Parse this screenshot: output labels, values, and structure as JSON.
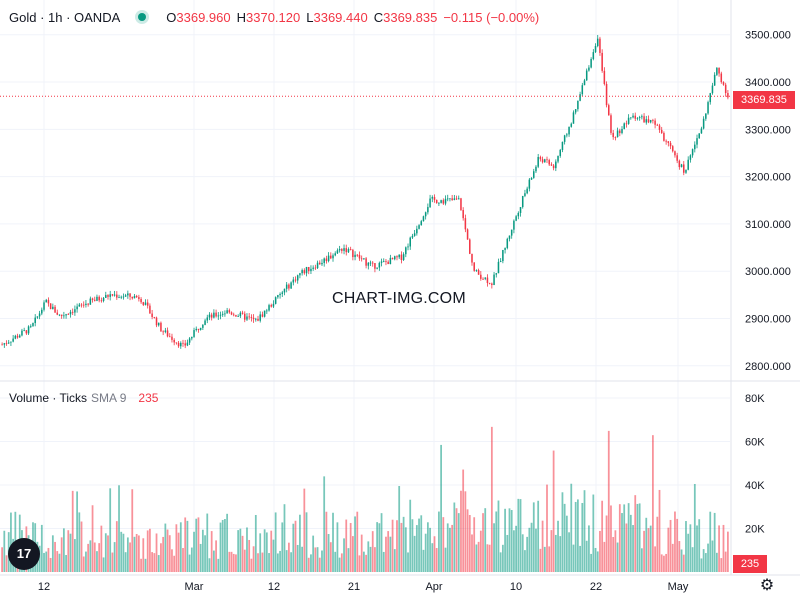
{
  "header": {
    "symbol": "Gold · 1h · OANDA",
    "ohlc": [
      {
        "label": "O",
        "value": "3369.960"
      },
      {
        "label": "H",
        "value": "3370.120"
      },
      {
        "label": "L",
        "value": "3369.440"
      },
      {
        "label": "C",
        "value": "3369.835"
      }
    ],
    "change": "−0.115 (−0.00%)"
  },
  "volume_legend": {
    "title": "Volume · Ticks",
    "sma_label": "SMA 9",
    "sma_value": "235"
  },
  "last_price_tag": "3369.835",
  "last_volume_tag": "235",
  "watermark": "CHART-IMG.COM",
  "logo_text": "17",
  "colors": {
    "up": "#089981",
    "down": "#f23645",
    "grid": "#f0f3fa",
    "text": "#131722"
  },
  "chart_data": {
    "type": "candlestick",
    "price_axis": {
      "ticks": [
        "2800.000",
        "2900.000",
        "3000.000",
        "3100.000",
        "3200.000",
        "3300.000",
        "3400.000",
        "3500.000"
      ],
      "range": [
        2770,
        3510
      ]
    },
    "volume_axis": {
      "ticks": [
        "20K",
        "40K",
        "60K",
        "80K"
      ],
      "range": [
        0,
        86000
      ]
    },
    "x_labels": [
      "12",
      "Mar",
      "12",
      "21",
      "Apr",
      "10",
      "22",
      "May"
    ],
    "last_price": 3369.835,
    "close_path": [
      {
        "t": 0.0,
        "c": 2845
      },
      {
        "t": 0.04,
        "c": 2880
      },
      {
        "t": 0.06,
        "c": 2935
      },
      {
        "t": 0.08,
        "c": 2905
      },
      {
        "t": 0.12,
        "c": 2935
      },
      {
        "t": 0.15,
        "c": 2950
      },
      {
        "t": 0.19,
        "c": 2945
      },
      {
        "t": 0.22,
        "c": 2875
      },
      {
        "t": 0.25,
        "c": 2840
      },
      {
        "t": 0.28,
        "c": 2900
      },
      {
        "t": 0.31,
        "c": 2915
      },
      {
        "t": 0.35,
        "c": 2895
      },
      {
        "t": 0.38,
        "c": 2945
      },
      {
        "t": 0.41,
        "c": 2995
      },
      {
        "t": 0.44,
        "c": 3020
      },
      {
        "t": 0.47,
        "c": 3050
      },
      {
        "t": 0.51,
        "c": 3010
      },
      {
        "t": 0.55,
        "c": 3030
      },
      {
        "t": 0.59,
        "c": 3150
      },
      {
        "t": 0.63,
        "c": 3150
      },
      {
        "t": 0.65,
        "c": 3000
      },
      {
        "t": 0.675,
        "c": 2975
      },
      {
        "t": 0.71,
        "c": 3125
      },
      {
        "t": 0.74,
        "c": 3240
      },
      {
        "t": 0.76,
        "c": 3220
      },
      {
        "t": 0.79,
        "c": 3340
      },
      {
        "t": 0.82,
        "c": 3495
      },
      {
        "t": 0.84,
        "c": 3280
      },
      {
        "t": 0.87,
        "c": 3330
      },
      {
        "t": 0.9,
        "c": 3310
      },
      {
        "t": 0.94,
        "c": 3210
      },
      {
        "t": 0.965,
        "c": 3310
      },
      {
        "t": 0.985,
        "c": 3430
      },
      {
        "t": 1.0,
        "c": 3370
      }
    ]
  }
}
